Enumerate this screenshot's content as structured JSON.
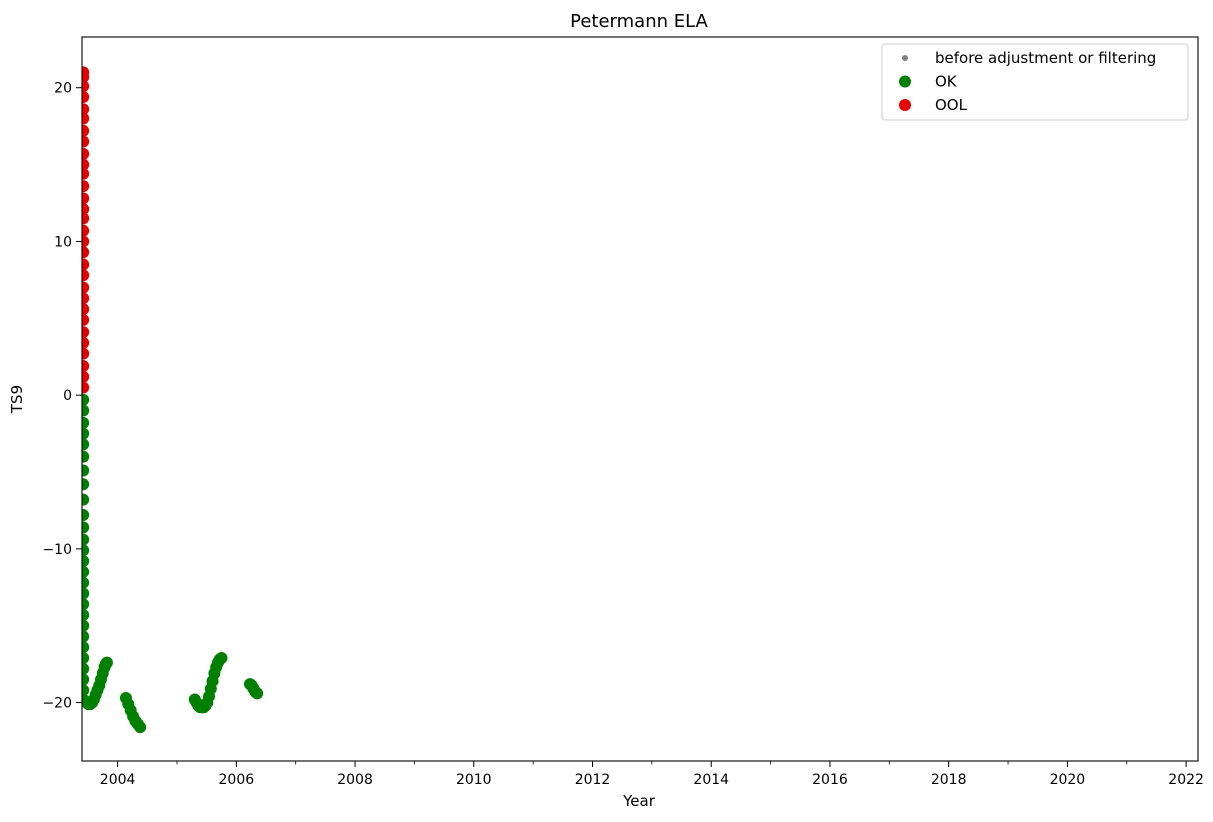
{
  "chart_data": {
    "type": "scatter",
    "title": "Petermann ELA",
    "xlabel": "Year",
    "ylabel": "TS9",
    "xlim": [
      2003.4,
      2022.2
    ],
    "ylim": [
      -23.8,
      23.3
    ],
    "xticks": [
      2004,
      2006,
      2008,
      2010,
      2012,
      2014,
      2016,
      2018,
      2020,
      2022
    ],
    "xtick_labels": [
      "2004",
      "2006",
      "2008",
      "2010",
      "2012",
      "2014",
      "2016",
      "2018",
      "2020",
      "2022"
    ],
    "x_minor_ticks": [
      2005,
      2007,
      2009,
      2011,
      2013,
      2015,
      2017,
      2019,
      2021
    ],
    "yticks": [
      -20,
      -10,
      0,
      10,
      20
    ],
    "ytick_labels": [
      "−20",
      "−10",
      "0",
      "10",
      "20"
    ],
    "grid": false,
    "legend_position": "top-right",
    "legend": [
      {
        "label": "before adjustment or filtering",
        "color": "#7f7f7f",
        "marker": "small-dot"
      },
      {
        "label": "OK",
        "color": "#008000",
        "marker": "dot"
      },
      {
        "label": "OOL",
        "color": "#e60000",
        "marker": "dot"
      }
    ],
    "series": [
      {
        "name": "OOL",
        "color": "#e60000",
        "points": [
          [
            2003.42,
            21.0
          ],
          [
            2003.42,
            20.7
          ],
          [
            2003.42,
            20.1
          ],
          [
            2003.42,
            19.4
          ],
          [
            2003.42,
            18.6
          ],
          [
            2003.42,
            18.0
          ],
          [
            2003.42,
            17.2
          ],
          [
            2003.42,
            16.5
          ],
          [
            2003.42,
            15.7
          ],
          [
            2003.42,
            15.0
          ],
          [
            2003.42,
            14.4
          ],
          [
            2003.42,
            13.6
          ],
          [
            2003.42,
            12.8
          ],
          [
            2003.42,
            12.1
          ],
          [
            2003.42,
            11.5
          ],
          [
            2003.42,
            10.7
          ],
          [
            2003.42,
            10.0
          ],
          [
            2003.42,
            9.3
          ],
          [
            2003.42,
            8.5
          ],
          [
            2003.42,
            7.8
          ],
          [
            2003.42,
            7.0
          ],
          [
            2003.42,
            6.3
          ],
          [
            2003.42,
            5.6
          ],
          [
            2003.42,
            4.9
          ],
          [
            2003.42,
            4.1
          ],
          [
            2003.42,
            3.4
          ],
          [
            2003.42,
            2.7
          ],
          [
            2003.42,
            1.9
          ],
          [
            2003.42,
            1.2
          ],
          [
            2003.42,
            0.5
          ]
        ]
      },
      {
        "name": "OK",
        "color": "#008000",
        "points": [
          [
            2003.42,
            -0.3
          ],
          [
            2003.42,
            -1.0
          ],
          [
            2003.42,
            -1.8
          ],
          [
            2003.42,
            -2.5
          ],
          [
            2003.42,
            -3.2
          ],
          [
            2003.42,
            -4.0
          ],
          [
            2003.42,
            -4.9
          ],
          [
            2003.42,
            -5.8
          ],
          [
            2003.42,
            -6.8
          ],
          [
            2003.42,
            -7.8
          ],
          [
            2003.42,
            -8.6
          ],
          [
            2003.42,
            -9.4
          ],
          [
            2003.42,
            -10.1
          ],
          [
            2003.42,
            -10.8
          ],
          [
            2003.42,
            -11.5
          ],
          [
            2003.42,
            -12.2
          ],
          [
            2003.42,
            -12.9
          ],
          [
            2003.42,
            -13.6
          ],
          [
            2003.42,
            -14.3
          ],
          [
            2003.42,
            -15.0
          ],
          [
            2003.42,
            -15.7
          ],
          [
            2003.42,
            -16.4
          ],
          [
            2003.42,
            -17.1
          ],
          [
            2003.42,
            -17.8
          ],
          [
            2003.42,
            -18.5
          ],
          [
            2003.42,
            -19.2
          ],
          [
            2003.42,
            -19.8
          ],
          [
            2003.45,
            -19.9
          ],
          [
            2003.48,
            -20.0
          ],
          [
            2003.51,
            -20.1
          ],
          [
            2003.54,
            -20.1
          ],
          [
            2003.57,
            -20.0
          ],
          [
            2003.6,
            -19.8
          ],
          [
            2003.63,
            -19.5
          ],
          [
            2003.66,
            -19.2
          ],
          [
            2003.69,
            -18.9
          ],
          [
            2003.72,
            -18.5
          ],
          [
            2003.75,
            -18.1
          ],
          [
            2003.78,
            -17.7
          ],
          [
            2003.8,
            -17.5
          ],
          [
            2003.82,
            -17.4
          ],
          [
            2004.14,
            -19.7
          ],
          [
            2004.18,
            -20.1
          ],
          [
            2004.22,
            -20.5
          ],
          [
            2004.26,
            -20.9
          ],
          [
            2004.3,
            -21.2
          ],
          [
            2004.34,
            -21.4
          ],
          [
            2004.38,
            -21.6
          ],
          [
            2005.3,
            -19.8
          ],
          [
            2005.33,
            -20.0
          ],
          [
            2005.36,
            -20.2
          ],
          [
            2005.39,
            -20.3
          ],
          [
            2005.42,
            -20.3
          ],
          [
            2005.45,
            -20.3
          ],
          [
            2005.48,
            -20.2
          ],
          [
            2005.51,
            -20.0
          ],
          [
            2005.54,
            -19.6
          ],
          [
            2005.57,
            -19.1
          ],
          [
            2005.6,
            -18.6
          ],
          [
            2005.63,
            -18.1
          ],
          [
            2005.66,
            -17.7
          ],
          [
            2005.69,
            -17.4
          ],
          [
            2005.72,
            -17.2
          ],
          [
            2005.75,
            -17.1
          ],
          [
            2006.23,
            -18.8
          ],
          [
            2006.26,
            -18.9
          ],
          [
            2006.29,
            -19.1
          ],
          [
            2006.32,
            -19.3
          ],
          [
            2006.35,
            -19.4
          ]
        ]
      }
    ]
  }
}
